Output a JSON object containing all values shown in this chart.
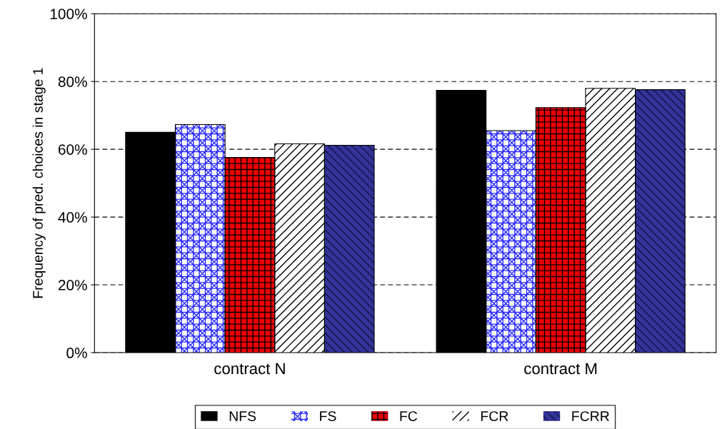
{
  "chart_data": {
    "type": "bar",
    "ylabel": "Frequency of pred. choices in stage 1",
    "categories": [
      "contract N",
      "contract M"
    ],
    "series": [
      {
        "name": "NFS",
        "color": "#000000",
        "values": [
          65,
          77.4
        ]
      },
      {
        "name": "FS",
        "color": "#2a2aff",
        "values": [
          67.3,
          65.5
        ]
      },
      {
        "name": "FC",
        "color": "#ee0000",
        "values": [
          57.6,
          72.3
        ]
      },
      {
        "name": "FCR",
        "color": "#ffffff",
        "values": [
          61.6,
          78
        ]
      },
      {
        "name": "FCRR",
        "color": "#333399",
        "values": [
          61.2,
          77.6
        ]
      }
    ],
    "ylim": [
      0,
      100
    ],
    "yticks": [
      {
        "value": 0,
        "label": "0%"
      },
      {
        "value": 20,
        "label": "20%"
      },
      {
        "value": 40,
        "label": "40%"
      },
      {
        "value": 60,
        "label": "60%"
      },
      {
        "value": 80,
        "label": "80%"
      },
      {
        "value": 100,
        "label": "100%"
      }
    ],
    "grid": "y",
    "legend": "bottom"
  }
}
